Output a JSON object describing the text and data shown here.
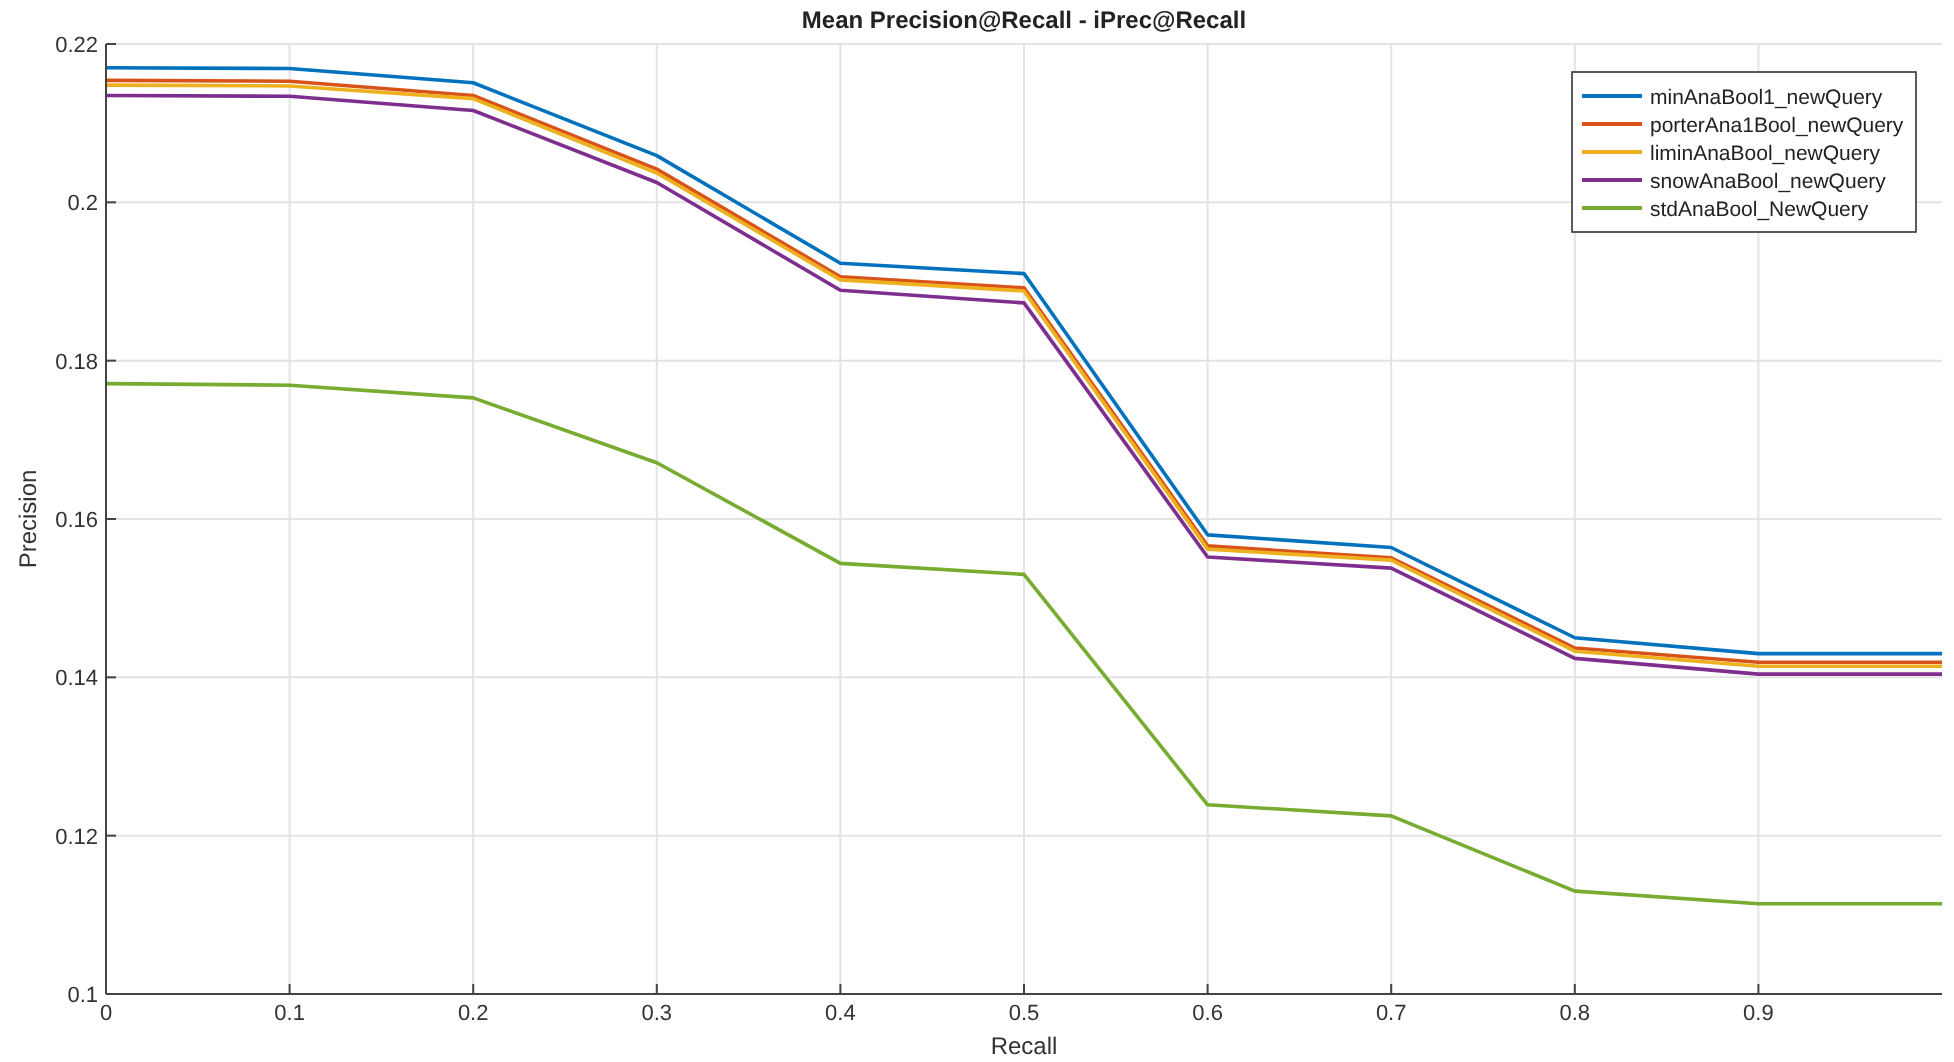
{
  "chart_data": {
    "type": "line",
    "title": "Mean Precision@Recall - iPrec@Recall",
    "xlabel": "Recall",
    "ylabel": "Precision",
    "x": [
      0,
      0.1,
      0.2,
      0.3,
      0.4,
      0.5,
      0.6,
      0.7,
      0.8,
      0.9,
      1
    ],
    "series": [
      {
        "name": "minAnaBool1_newQuery",
        "color": "#0072bd",
        "values": [
          0.217,
          0.2169,
          0.2151,
          0.2059,
          0.1923,
          0.191,
          0.158,
          0.1564,
          0.145,
          0.143,
          0.143
        ]
      },
      {
        "name": "porterAna1Bool_newQuery",
        "color": "#d95319",
        "values": [
          0.2154,
          0.2153,
          0.2135,
          0.2042,
          0.1906,
          0.1892,
          0.1566,
          0.1551,
          0.1437,
          0.1419,
          0.1419
        ]
      },
      {
        "name": "liminAnaBool_newQuery",
        "color": "#edb120",
        "values": [
          0.2148,
          0.2147,
          0.2131,
          0.2037,
          0.1902,
          0.1888,
          0.1562,
          0.1548,
          0.1433,
          0.1414,
          0.1414
        ]
      },
      {
        "name": "snowAnaBool_newQuery",
        "color": "#7e2f8e",
        "values": [
          0.2135,
          0.2134,
          0.2116,
          0.2025,
          0.1889,
          0.1873,
          0.1552,
          0.1538,
          0.1424,
          0.1404,
          0.1404
        ]
      },
      {
        "name": "stdAnaBool_NewQuery",
        "color": "#77ac30",
        "values": [
          0.1771,
          0.1769,
          0.1753,
          0.1671,
          0.1544,
          0.153,
          0.1239,
          0.1225,
          0.113,
          0.1114,
          0.1114
        ]
      }
    ],
    "xlim": [
      0,
      1
    ],
    "xticks": [
      0,
      0.1,
      0.2,
      0.3,
      0.4,
      0.5,
      0.6,
      0.7,
      0.8,
      0.9
    ],
    "ylim": [
      0.1,
      0.22
    ],
    "yticks": [
      0.1,
      0.12,
      0.14,
      0.16,
      0.18,
      0.2,
      0.22
    ],
    "grid": true,
    "legend": "top right",
    "marker": "none",
    "line_style": "solid"
  }
}
